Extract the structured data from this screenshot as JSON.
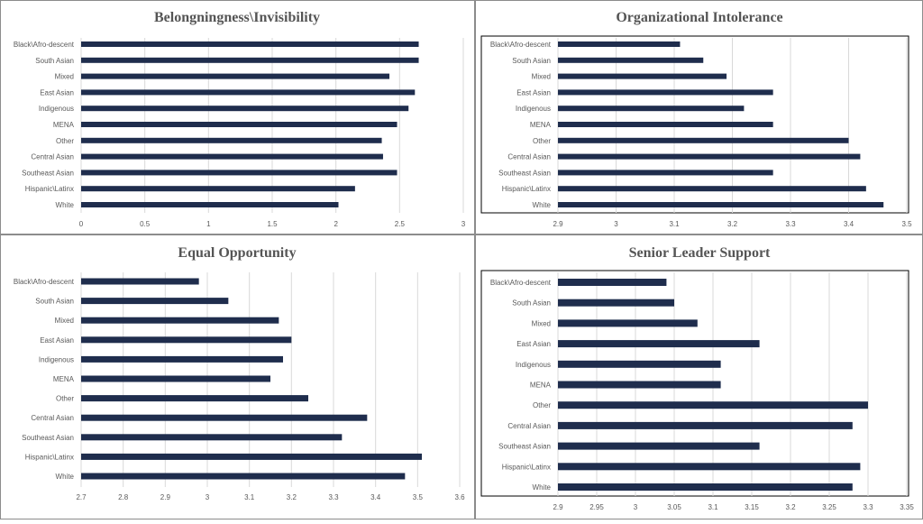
{
  "colors": {
    "bar": "#1f2d4d",
    "grid": "#d9d9d9",
    "panel_border": "#8c8c8c",
    "plot_border": "#000000",
    "text": "#595959",
    "title": "#555555"
  },
  "chart_data": [
    {
      "type": "bar",
      "orientation": "horizontal",
      "title": "Belongningness\\Invisibility",
      "categories": [
        "Black\\Afro-descent",
        "South Asian",
        "Mixed",
        "East Asian",
        "Indigenous",
        "MENA",
        "Other",
        "Central Asian",
        "Southeast Asian",
        "Hispanic\\Latinx",
        "White"
      ],
      "values": [
        2.65,
        2.65,
        2.42,
        2.62,
        2.57,
        2.48,
        2.36,
        2.37,
        2.48,
        2.15,
        2.02
      ],
      "xlim": [
        0,
        3
      ],
      "ticks": [
        "0",
        "0.5",
        "1",
        "1.5",
        "2",
        "2.5",
        "3"
      ],
      "grid": true,
      "plot_area_border": false
    },
    {
      "type": "bar",
      "orientation": "horizontal",
      "title": "Organizational Intolerance",
      "categories": [
        "Black\\Afro-descent",
        "South Asian",
        "Mixed",
        "East Asian",
        "Indigenous",
        "MENA",
        "Other",
        "Central Asian",
        "Southeast Asian",
        "Hispanic\\Latinx",
        "White"
      ],
      "values": [
        3.11,
        3.15,
        3.19,
        3.27,
        3.22,
        3.27,
        3.4,
        3.42,
        3.27,
        3.43,
        3.46
      ],
      "xlim": [
        2.9,
        3.5
      ],
      "ticks": [
        "2.9",
        "3",
        "3.1",
        "3.2",
        "3.3",
        "3.4",
        "3.5"
      ],
      "grid": true,
      "plot_area_border": true
    },
    {
      "type": "bar",
      "orientation": "horizontal",
      "title": "Equal Opportunity",
      "categories": [
        "Black\\Afro-descent",
        "South Asian",
        "Mixed",
        "East Asian",
        "Indigenous",
        "MENA",
        "Other",
        "Central Asian",
        "Southeast Asian",
        "Hispanic\\Latinx",
        "White"
      ],
      "values": [
        2.98,
        3.05,
        3.17,
        3.2,
        3.18,
        3.15,
        3.24,
        3.38,
        3.32,
        3.51,
        3.47
      ],
      "xlim": [
        2.7,
        3.6
      ],
      "ticks": [
        "2.7",
        "2.8",
        "2.9",
        "3",
        "3.1",
        "3.2",
        "3.3",
        "3.4",
        "3.5",
        "3.6"
      ],
      "grid": true,
      "plot_area_border": false
    },
    {
      "type": "bar",
      "orientation": "horizontal",
      "title": "Senior Leader Support",
      "categories": [
        "Black\\Afro-descent",
        "South Asian",
        "Mixed",
        "East Asian",
        "Indigenous",
        "MENA",
        "Other",
        "Central Asian",
        "Southeast Asian",
        "Hispanic\\Latinx",
        "White"
      ],
      "values": [
        3.04,
        3.05,
        3.08,
        3.16,
        3.11,
        3.11,
        3.3,
        3.28,
        3.16,
        3.29,
        3.28
      ],
      "xlim": [
        2.9,
        3.35
      ],
      "ticks": [
        "2.9",
        "2.95",
        "3",
        "3.05",
        "3.1",
        "3.15",
        "3.2",
        "3.25",
        "3.3",
        "3.35"
      ],
      "grid": true,
      "plot_area_border": true
    }
  ]
}
